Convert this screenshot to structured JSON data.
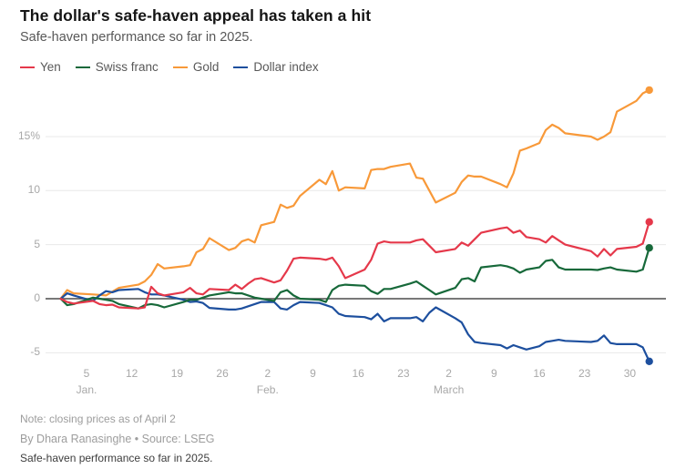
{
  "header": {
    "title": "The dollar's safe-haven appeal has taken a hit",
    "subtitle": "Safe-haven performance so far in 2025."
  },
  "footer": {
    "note": "Note: closing prices as of April 2",
    "byline": "By Dhara Ranasinghe • Source: LSEG",
    "caption": "Safe-haven performance so far in 2025."
  },
  "colors": {
    "grid": "#e8e8e8",
    "zero_line": "#4c4c4c",
    "tick_text": "#a8a8a8"
  },
  "chart_data": {
    "type": "line",
    "title": "The dollar's safe-haven appeal has taken a hit",
    "subtitle": "Safe-haven performance so far in 2025.",
    "x_unit": "day-of-year 2025 (Jan 1 = 1, Apr 2 = 92)",
    "x_range": [
      1,
      92
    ],
    "ylim": [
      -7,
      20.5
    ],
    "grid": "horizontal-only",
    "legend_position": "top-left",
    "end_dots": true,
    "y_ticks": [
      {
        "v": 15,
        "label": "15%"
      },
      {
        "v": 10,
        "label": "10"
      },
      {
        "v": 5,
        "label": "5"
      },
      {
        "v": 0,
        "label": "0"
      },
      {
        "v": -5,
        "label": "-5"
      }
    ],
    "x_ticks": [
      {
        "d": 5,
        "label": "5"
      },
      {
        "d": 12,
        "label": "12"
      },
      {
        "d": 19,
        "label": "19"
      },
      {
        "d": 26,
        "label": "26"
      },
      {
        "d": 33,
        "label": "2"
      },
      {
        "d": 40,
        "label": "9"
      },
      {
        "d": 47,
        "label": "16"
      },
      {
        "d": 54,
        "label": "23"
      },
      {
        "d": 61,
        "label": "2"
      },
      {
        "d": 68,
        "label": "9"
      },
      {
        "d": 75,
        "label": "16"
      },
      {
        "d": 82,
        "label": "23"
      },
      {
        "d": 89,
        "label": "30"
      }
    ],
    "month_labels": [
      {
        "d": 5,
        "label": "Jan."
      },
      {
        "d": 33,
        "label": "Feb."
      },
      {
        "d": 61,
        "label": "March"
      }
    ],
    "series": [
      {
        "name": "Yen",
        "color": "#e5384a",
        "points": [
          [
            1,
            0
          ],
          [
            2,
            -0.3
          ],
          [
            3,
            -0.45
          ],
          [
            6,
            -0.2
          ],
          [
            7,
            -0.5
          ],
          [
            8,
            -0.6
          ],
          [
            9,
            -0.55
          ],
          [
            10,
            -0.8
          ],
          [
            13,
            -0.9
          ],
          [
            14,
            -0.8
          ],
          [
            15,
            1.1
          ],
          [
            16,
            0.5
          ],
          [
            17,
            0.3
          ],
          [
            20,
            0.6
          ],
          [
            21,
            1.0
          ],
          [
            22,
            0.5
          ],
          [
            23,
            0.4
          ],
          [
            24,
            0.9
          ],
          [
            27,
            0.8
          ],
          [
            28,
            1.3
          ],
          [
            29,
            0.9
          ],
          [
            30,
            1.4
          ],
          [
            31,
            1.8
          ],
          [
            32,
            1.9
          ],
          [
            34,
            1.5
          ],
          [
            35,
            1.7
          ],
          [
            36,
            2.6
          ],
          [
            37,
            3.7
          ],
          [
            38,
            3.8
          ],
          [
            41,
            3.7
          ],
          [
            42,
            3.6
          ],
          [
            43,
            3.8
          ],
          [
            44,
            3.0
          ],
          [
            45,
            1.9
          ],
          [
            48,
            2.7
          ],
          [
            49,
            3.6
          ],
          [
            50,
            5.1
          ],
          [
            51,
            5.3
          ],
          [
            52,
            5.2
          ],
          [
            55,
            5.2
          ],
          [
            56,
            5.4
          ],
          [
            57,
            5.5
          ],
          [
            58,
            4.9
          ],
          [
            59,
            4.3
          ],
          [
            62,
            4.6
          ],
          [
            63,
            5.2
          ],
          [
            64,
            4.9
          ],
          [
            65,
            5.5
          ],
          [
            66,
            6.1
          ],
          [
            69,
            6.5
          ],
          [
            70,
            6.6
          ],
          [
            71,
            6.1
          ],
          [
            72,
            6.3
          ],
          [
            73,
            5.7
          ],
          [
            75,
            5.5
          ],
          [
            76,
            5.2
          ],
          [
            77,
            5.8
          ],
          [
            78,
            5.4
          ],
          [
            79,
            5.0
          ],
          [
            83,
            4.4
          ],
          [
            84,
            3.9
          ],
          [
            85,
            4.6
          ],
          [
            86,
            4.0
          ],
          [
            87,
            4.6
          ],
          [
            90,
            4.8
          ],
          [
            91,
            5.1
          ],
          [
            92,
            7.1
          ]
        ]
      },
      {
        "name": "Swiss franc",
        "color": "#17693a",
        "points": [
          [
            1,
            0
          ],
          [
            2,
            -0.6
          ],
          [
            3,
            -0.5
          ],
          [
            6,
            0.1
          ],
          [
            7,
            0
          ],
          [
            8,
            -0.1
          ],
          [
            9,
            -0.2
          ],
          [
            10,
            -0.5
          ],
          [
            13,
            -0.9
          ],
          [
            14,
            -0.6
          ],
          [
            15,
            -0.5
          ],
          [
            16,
            -0.6
          ],
          [
            17,
            -0.8
          ],
          [
            20,
            -0.3
          ],
          [
            21,
            -0.1
          ],
          [
            22,
            -0.1
          ],
          [
            23,
            0.1
          ],
          [
            24,
            0.3
          ],
          [
            27,
            0.6
          ],
          [
            28,
            0.5
          ],
          [
            29,
            0.5
          ],
          [
            30,
            0.3
          ],
          [
            31,
            0.1
          ],
          [
            32,
            0
          ],
          [
            34,
            -0.2
          ],
          [
            35,
            0.6
          ],
          [
            36,
            0.8
          ],
          [
            37,
            0.3
          ],
          [
            38,
            0
          ],
          [
            41,
            -0.1
          ],
          [
            42,
            -0.3
          ],
          [
            43,
            0.8
          ],
          [
            44,
            1.2
          ],
          [
            45,
            1.3
          ],
          [
            48,
            1.2
          ],
          [
            49,
            0.7
          ],
          [
            50,
            0.45
          ],
          [
            51,
            0.9
          ],
          [
            52,
            0.9
          ],
          [
            55,
            1.4
          ],
          [
            56,
            1.6
          ],
          [
            57,
            1.2
          ],
          [
            58,
            0.8
          ],
          [
            59,
            0.4
          ],
          [
            62,
            1.0
          ],
          [
            63,
            1.8
          ],
          [
            64,
            1.9
          ],
          [
            65,
            1.6
          ],
          [
            66,
            2.9
          ],
          [
            69,
            3.1
          ],
          [
            70,
            3.0
          ],
          [
            71,
            2.8
          ],
          [
            72,
            2.4
          ],
          [
            73,
            2.7
          ],
          [
            75,
            2.9
          ],
          [
            76,
            3.5
          ],
          [
            77,
            3.6
          ],
          [
            78,
            2.9
          ],
          [
            79,
            2.7
          ],
          [
            83,
            2.7
          ],
          [
            84,
            2.65
          ],
          [
            85,
            2.8
          ],
          [
            86,
            2.9
          ],
          [
            87,
            2.7
          ],
          [
            90,
            2.5
          ],
          [
            91,
            2.7
          ],
          [
            92,
            4.7
          ]
        ]
      },
      {
        "name": "Gold",
        "color": "#f89939",
        "points": [
          [
            1,
            0
          ],
          [
            2,
            0.8
          ],
          [
            3,
            0.5
          ],
          [
            6,
            0.4
          ],
          [
            8,
            0.3
          ],
          [
            10,
            1.0
          ],
          [
            13,
            1.3
          ],
          [
            14,
            1.6
          ],
          [
            15,
            2.2
          ],
          [
            16,
            3.2
          ],
          [
            17,
            2.8
          ],
          [
            20,
            3.0
          ],
          [
            21,
            3.1
          ],
          [
            22,
            4.3
          ],
          [
            23,
            4.6
          ],
          [
            24,
            5.6
          ],
          [
            27,
            4.5
          ],
          [
            28,
            4.7
          ],
          [
            29,
            5.3
          ],
          [
            30,
            5.5
          ],
          [
            31,
            5.2
          ],
          [
            32,
            6.8
          ],
          [
            34,
            7.1
          ],
          [
            35,
            8.7
          ],
          [
            36,
            8.4
          ],
          [
            37,
            8.6
          ],
          [
            38,
            9.5
          ],
          [
            41,
            11.0
          ],
          [
            42,
            10.6
          ],
          [
            43,
            11.8
          ],
          [
            44,
            10.0
          ],
          [
            45,
            10.3
          ],
          [
            48,
            10.2
          ],
          [
            49,
            11.9
          ],
          [
            50,
            12.0
          ],
          [
            51,
            12.0
          ],
          [
            52,
            12.2
          ],
          [
            55,
            12.5
          ],
          [
            56,
            11.2
          ],
          [
            57,
            11.1
          ],
          [
            58,
            10.0
          ],
          [
            59,
            8.9
          ],
          [
            62,
            9.8
          ],
          [
            63,
            10.8
          ],
          [
            64,
            11.4
          ],
          [
            65,
            11.3
          ],
          [
            66,
            11.3
          ],
          [
            69,
            10.6
          ],
          [
            70,
            10.3
          ],
          [
            71,
            11.6
          ],
          [
            72,
            13.7
          ],
          [
            73,
            13.9
          ],
          [
            75,
            14.4
          ],
          [
            76,
            15.6
          ],
          [
            77,
            16.1
          ],
          [
            78,
            15.8
          ],
          [
            79,
            15.3
          ],
          [
            83,
            15.0
          ],
          [
            84,
            14.7
          ],
          [
            85,
            15.0
          ],
          [
            86,
            15.4
          ],
          [
            87,
            17.3
          ],
          [
            90,
            18.3
          ],
          [
            91,
            19.0
          ],
          [
            92,
            19.3
          ]
        ]
      },
      {
        "name": "Dollar index",
        "color": "#1d4f9e",
        "points": [
          [
            1,
            0
          ],
          [
            2,
            0.5
          ],
          [
            3,
            0.3
          ],
          [
            6,
            -0.2
          ],
          [
            7,
            0.3
          ],
          [
            8,
            0.7
          ],
          [
            9,
            0.6
          ],
          [
            10,
            0.8
          ],
          [
            13,
            0.9
          ],
          [
            14,
            0.6
          ],
          [
            15,
            0.4
          ],
          [
            16,
            0.4
          ],
          [
            17,
            0.3
          ],
          [
            20,
            -0.1
          ],
          [
            21,
            -0.3
          ],
          [
            22,
            -0.25
          ],
          [
            23,
            -0.4
          ],
          [
            24,
            -0.85
          ],
          [
            27,
            -1.0
          ],
          [
            28,
            -1.0
          ],
          [
            29,
            -0.9
          ],
          [
            30,
            -0.7
          ],
          [
            31,
            -0.5
          ],
          [
            32,
            -0.3
          ],
          [
            34,
            -0.3
          ],
          [
            35,
            -0.9
          ],
          [
            36,
            -1.0
          ],
          [
            37,
            -0.6
          ],
          [
            38,
            -0.3
          ],
          [
            41,
            -0.4
          ],
          [
            42,
            -0.6
          ],
          [
            43,
            -0.8
          ],
          [
            44,
            -1.4
          ],
          [
            45,
            -1.6
          ],
          [
            48,
            -1.7
          ],
          [
            49,
            -1.9
          ],
          [
            50,
            -1.4
          ],
          [
            51,
            -2.1
          ],
          [
            52,
            -1.8
          ],
          [
            55,
            -1.8
          ],
          [
            56,
            -1.7
          ],
          [
            57,
            -2.1
          ],
          [
            58,
            -1.3
          ],
          [
            59,
            -0.8
          ],
          [
            62,
            -1.8
          ],
          [
            63,
            -2.2
          ],
          [
            64,
            -3.3
          ],
          [
            65,
            -4.0
          ],
          [
            66,
            -4.1
          ],
          [
            69,
            -4.3
          ],
          [
            70,
            -4.6
          ],
          [
            71,
            -4.3
          ],
          [
            72,
            -4.5
          ],
          [
            73,
            -4.7
          ],
          [
            75,
            -4.4
          ],
          [
            76,
            -4.0
          ],
          [
            77,
            -3.9
          ],
          [
            78,
            -3.8
          ],
          [
            79,
            -3.9
          ],
          [
            83,
            -4.0
          ],
          [
            84,
            -3.9
          ],
          [
            85,
            -3.4
          ],
          [
            86,
            -4.1
          ],
          [
            87,
            -4.2
          ],
          [
            90,
            -4.2
          ],
          [
            91,
            -4.5
          ],
          [
            92,
            -5.8
          ]
        ]
      }
    ]
  }
}
